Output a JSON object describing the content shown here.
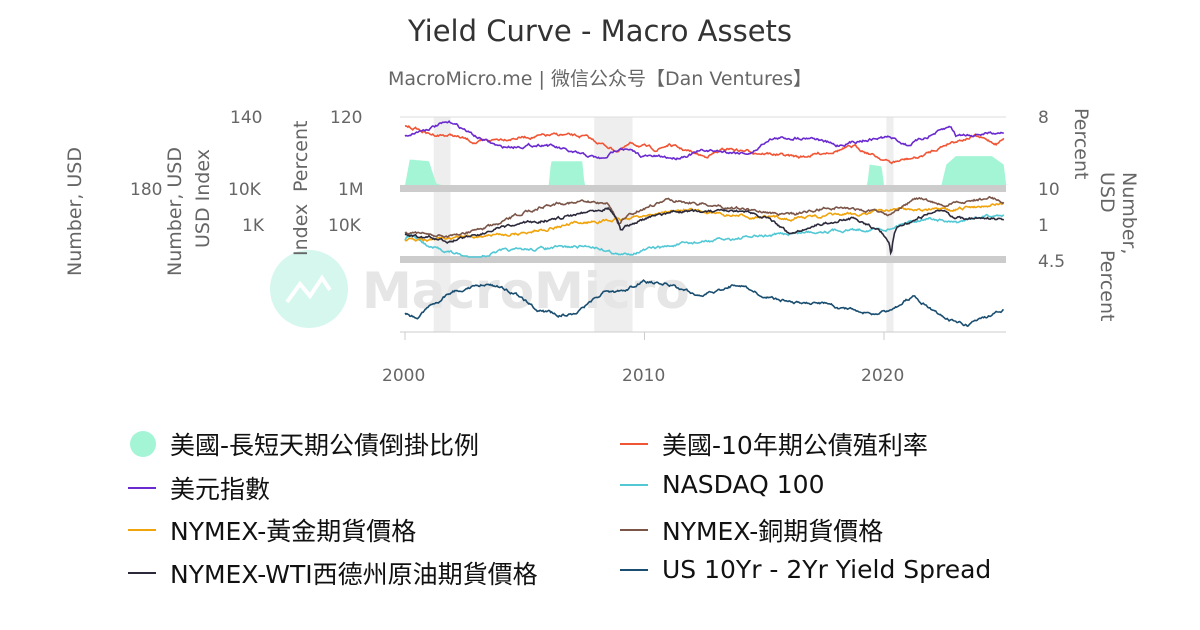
{
  "chart_data": {
    "type": "line",
    "title": "Yield Curve - Macro Assets",
    "subtitle": "MacroMicro.me | 微信公众号【Dan Ventures】",
    "watermark": "MacroMicro",
    "x_ticks": [
      "2000",
      "2010",
      "2020"
    ],
    "xlim": [
      2000,
      2025.3
    ],
    "recessions": [
      [
        2001.2,
        2001.9
      ],
      [
        2007.9,
        2009.5
      ],
      [
        2020.1,
        2020.4
      ]
    ],
    "left_axes": [
      {
        "title": "Number, USD",
        "ticks": [
          "180"
        ]
      },
      {
        "title": "Number, USD",
        "ticks": []
      },
      {
        "title": "USD Index",
        "ticks": [
          "140",
          "10K",
          "1K"
        ]
      },
      {
        "title": "Index",
        "ticks": []
      },
      {
        "title": "Percent",
        "ticks": [
          "120",
          "1M",
          "10K"
        ]
      }
    ],
    "right_axes": [
      {
        "title": "Percent",
        "ticks": [
          "8",
          "10",
          "1",
          "4.5"
        ]
      },
      {
        "title": "Number, USD",
        "ticks": []
      },
      {
        "title": "Percent",
        "ticks": []
      }
    ],
    "series": [
      {
        "name": "美國-長短天期公債倒掛比例",
        "type": "area",
        "panel": 0,
        "color": "#a4f5d6",
        "range": [
          0,
          200
        ],
        "points": [
          [
            2000,
            0
          ],
          [
            2000.2,
            75
          ],
          [
            2001,
            70
          ],
          [
            2001.3,
            5
          ],
          [
            2001.5,
            0
          ],
          [
            2006,
            0
          ],
          [
            2006.1,
            70
          ],
          [
            2007.4,
            70
          ],
          [
            2007.5,
            0
          ],
          [
            2019.3,
            0
          ],
          [
            2019.4,
            60
          ],
          [
            2019.9,
            55
          ],
          [
            2020,
            0
          ],
          [
            2022.4,
            0
          ],
          [
            2022.6,
            60
          ],
          [
            2023,
            85
          ],
          [
            2024.5,
            85
          ],
          [
            2025,
            60
          ],
          [
            2025.1,
            0
          ]
        ]
      },
      {
        "name": "美國-10年期公債殖利率",
        "type": "line",
        "panel": 0,
        "color": "#f05535",
        "range": [
          -3,
          8
        ],
        "points": [
          [
            2000,
            6.6
          ],
          [
            2000.5,
            6.1
          ],
          [
            2001,
            5.2
          ],
          [
            2002,
            5
          ],
          [
            2003,
            3.8
          ],
          [
            2004,
            4.5
          ],
          [
            2006.5,
            5.1
          ],
          [
            2007.5,
            4.8
          ],
          [
            2008.9,
            2.5
          ],
          [
            2009.5,
            3.7
          ],
          [
            2010.5,
            2.7
          ],
          [
            2011,
            3.5
          ],
          [
            2012.5,
            1.6
          ],
          [
            2013.5,
            2.9
          ],
          [
            2014,
            2.6
          ],
          [
            2016.5,
            1.5
          ],
          [
            2018.8,
            3.2
          ],
          [
            2019.7,
            1.6
          ],
          [
            2020.3,
            0.6
          ],
          [
            2021,
            1.2
          ],
          [
            2021.5,
            1.5
          ],
          [
            2022.8,
            4
          ],
          [
            2023.8,
            4.9
          ],
          [
            2024.7,
            3.7
          ],
          [
            2025,
            4.5
          ]
        ]
      },
      {
        "name": "美元指數",
        "type": "line",
        "panel": 0,
        "color": "#6a2ad0",
        "range": [
          40,
          125
        ],
        "points": [
          [
            2000,
            102
          ],
          [
            2001.5,
            116
          ],
          [
            2002,
            118
          ],
          [
            2003,
            100
          ],
          [
            2004,
            87
          ],
          [
            2005.9,
            91
          ],
          [
            2007,
            80
          ],
          [
            2008.3,
            72
          ],
          [
            2009,
            88
          ],
          [
            2009.9,
            76
          ],
          [
            2011.3,
            74
          ],
          [
            2012.5,
            83
          ],
          [
            2014.5,
            80
          ],
          [
            2015.2,
            98
          ],
          [
            2017,
            100
          ],
          [
            2018,
            89
          ],
          [
            2019,
            96
          ],
          [
            2020.2,
            100
          ],
          [
            2021,
            90
          ],
          [
            2022.8,
            113
          ],
          [
            2023,
            102
          ],
          [
            2024,
            104
          ],
          [
            2025,
            107
          ]
        ]
      },
      {
        "name": "NASDAQ 100",
        "type": "line",
        "panel": 1,
        "color": "#52c8d5",
        "range": [
          3,
          5
        ],
        "log": true,
        "points": [
          [
            2000,
            3500
          ],
          [
            2000.2,
            4700
          ],
          [
            2001,
            2000
          ],
          [
            2002.8,
            850
          ],
          [
            2004,
            1500
          ],
          [
            2007.8,
            2200
          ],
          [
            2009,
            1100
          ],
          [
            2012,
            2700
          ],
          [
            2015,
            4500
          ],
          [
            2018,
            7000
          ],
          [
            2020.2,
            7500
          ],
          [
            2021,
            13000
          ],
          [
            2021.9,
            16500
          ],
          [
            2022.9,
            11000
          ],
          [
            2024,
            17000
          ],
          [
            2025,
            21000
          ]
        ]
      },
      {
        "name": "NYMEX-黃金期貨價格",
        "type": "line",
        "panel": 1,
        "color": "#f0a30a",
        "range": [
          2,
          3.7
        ],
        "log": true,
        "points": [
          [
            2000,
            285
          ],
          [
            2001,
            270
          ],
          [
            2003,
            360
          ],
          [
            2005,
            430
          ],
          [
            2008,
            900
          ],
          [
            2009,
            950
          ],
          [
            2011.7,
            1800
          ],
          [
            2013.5,
            1250
          ],
          [
            2015.9,
            1060
          ],
          [
            2019,
            1400
          ],
          [
            2020.6,
            1950
          ],
          [
            2022.8,
            1650
          ],
          [
            2024,
            2300
          ],
          [
            2025,
            2650
          ]
        ]
      },
      {
        "name": "NYMEX-銅期貨價格",
        "type": "line",
        "panel": 1,
        "color": "#7a5548",
        "range": [
          -0.6,
          0.8
        ],
        "log": true,
        "points": [
          [
            2000,
            0.85
          ],
          [
            2002,
            0.7
          ],
          [
            2004,
            1.3
          ],
          [
            2006.4,
            3.9
          ],
          [
            2008.4,
            3.9
          ],
          [
            2008.9,
            1.4
          ],
          [
            2011.1,
            4.5
          ],
          [
            2013,
            3.3
          ],
          [
            2016,
            2.05
          ],
          [
            2018,
            3.1
          ],
          [
            2020.2,
            2.2
          ],
          [
            2021.4,
            4.7
          ],
          [
            2022.5,
            3.3
          ],
          [
            2024.4,
            4.9
          ],
          [
            2025,
            4.2
          ]
        ]
      },
      {
        "name": "NYMEX-WTI西德州原油期貨價格",
        "type": "line",
        "panel": 1,
        "color": "#2c2a3a",
        "range": [
          0.9,
          2.5
        ],
        "log": true,
        "points": [
          [
            2000,
            28
          ],
          [
            2001.9,
            19
          ],
          [
            2004,
            40
          ],
          [
            2006.5,
            75
          ],
          [
            2008.5,
            140
          ],
          [
            2009,
            38
          ],
          [
            2011.3,
            110
          ],
          [
            2014.5,
            102
          ],
          [
            2016,
            30
          ],
          [
            2018.7,
            75
          ],
          [
            2020.2,
            20
          ],
          [
            2020.3,
            8
          ],
          [
            2020.5,
            40
          ],
          [
            2022.4,
            115
          ],
          [
            2023,
            75
          ],
          [
            2025,
            70
          ]
        ]
      },
      {
        "name": "US 10Yr - 2Yr Yield Spread",
        "type": "line",
        "panel": 2,
        "color": "#1a4e70",
        "range": [
          -1.6,
          4.5
        ],
        "points": [
          [
            2000,
            0.1
          ],
          [
            2000.5,
            -0.4
          ],
          [
            2001,
            0.5
          ],
          [
            2002,
            2
          ],
          [
            2003.5,
            2.6
          ],
          [
            2004.5,
            1.9
          ],
          [
            2005.5,
            0.3
          ],
          [
            2006.5,
            -0.1
          ],
          [
            2007.2,
            0.1
          ],
          [
            2008.3,
            1.9
          ],
          [
            2009.1,
            2
          ],
          [
            2010,
            2.8
          ],
          [
            2011,
            2.5
          ],
          [
            2012.4,
            1.5
          ],
          [
            2013.9,
            2.6
          ],
          [
            2015,
            1.5
          ],
          [
            2016.6,
            0.8
          ],
          [
            2017.5,
            0.9
          ],
          [
            2018.8,
            0.2
          ],
          [
            2019.6,
            -0.1
          ],
          [
            2020.5,
            0.6
          ],
          [
            2021.2,
            1.5
          ],
          [
            2022,
            0.4
          ],
          [
            2022.9,
            -0.7
          ],
          [
            2023.5,
            -1.05
          ],
          [
            2024.3,
            -0.3
          ],
          [
            2025,
            0.3
          ]
        ]
      }
    ]
  }
}
